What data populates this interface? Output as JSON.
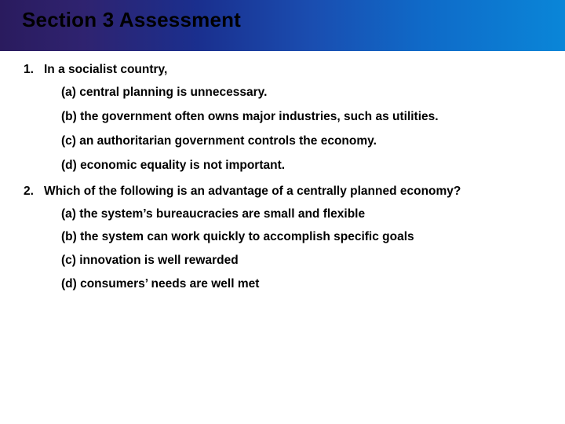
{
  "header": {
    "title": "Section 3 Assessment",
    "gradient_colors": [
      "#2a1b5e",
      "#2f2370",
      "#1a2f8e",
      "#1a4db0",
      "#0f6ac8",
      "#0a86d8"
    ],
    "title_color": "#000000",
    "title_fontsize": 26,
    "title_fontweight": 700
  },
  "body": {
    "text_color": "#000000",
    "fontsize": 15.5,
    "fontweight": 700,
    "background_color": "#ffffff"
  },
  "questions": [
    {
      "number": "1.",
      "stem": "In a socialist country,",
      "options": [
        "(a) central planning is unnecessary.",
        "(b) the government often owns major industries, such as utilities.",
        "(c) an authoritarian government controls the economy.",
        "(d) economic equality is not important."
      ]
    },
    {
      "number": "2.",
      "stem": "Which of the following is an advantage of a centrally planned economy?",
      "options": [
        "(a) the system’s bureaucracies are small and flexible",
        "(b) the system can work quickly to accomplish specific goals",
        "(c) innovation is well rewarded",
        "(d) consumers’ needs are well met"
      ]
    }
  ]
}
